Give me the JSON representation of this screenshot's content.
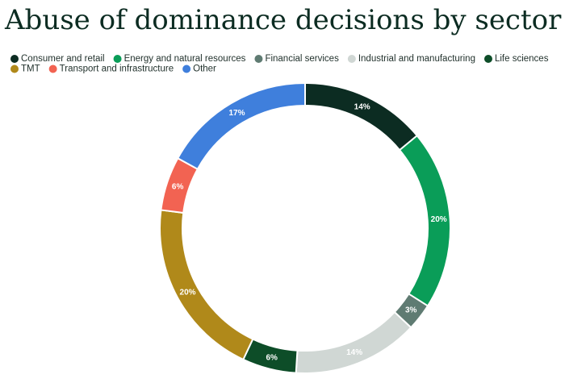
{
  "chart_data": {
    "type": "donut",
    "title": "Abuse of dominance decisions by sector",
    "categories": [
      "Consumer and retail",
      "Energy and natural resources",
      "Financial services",
      "Industrial and manufacturing",
      "Life sciences",
      "TMT",
      "Transport and infrastructure",
      "Other"
    ],
    "values": [
      14,
      20,
      3,
      14,
      6,
      20,
      6,
      17
    ],
    "value_labels": [
      "14%",
      "20%",
      "3%",
      "14%",
      "6%",
      "20%",
      "6%",
      "17%"
    ],
    "colors": [
      "#0c2c22",
      "#0a9d58",
      "#5f7b72",
      "#d0d7d4",
      "#0d4d28",
      "#b0891a",
      "#f26352",
      "#3f7fdc"
    ]
  }
}
